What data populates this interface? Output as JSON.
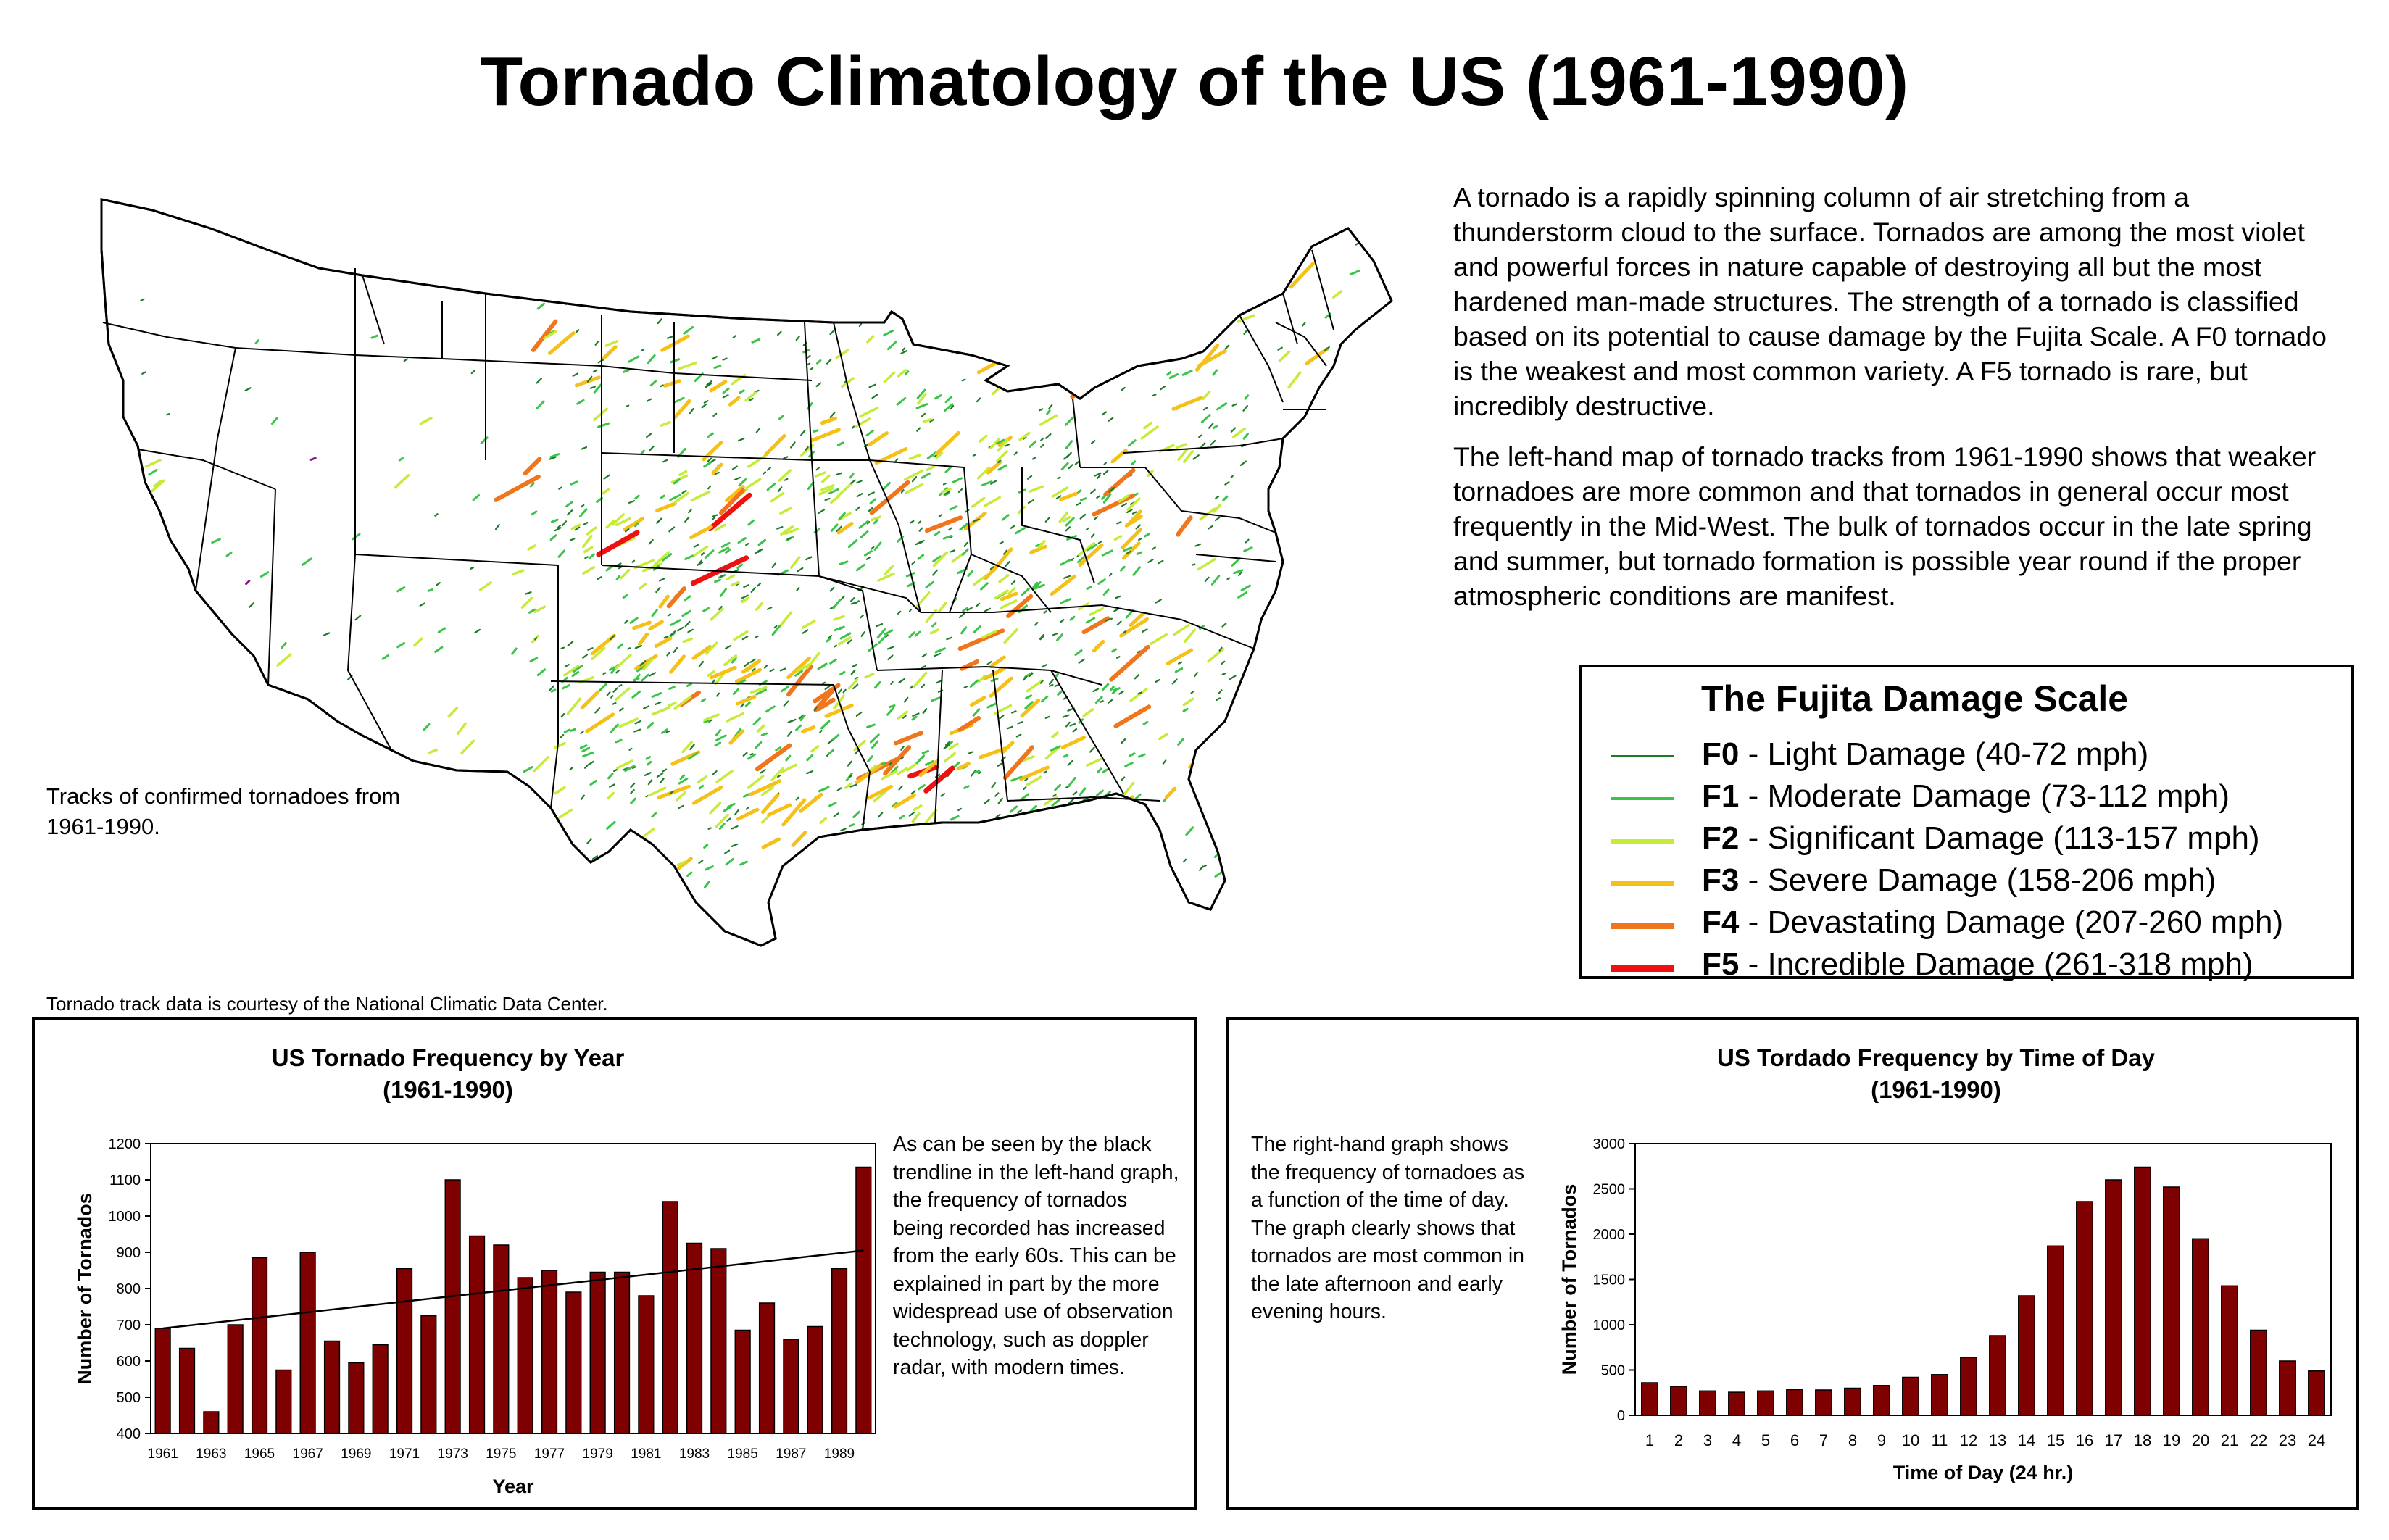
{
  "page": {
    "title": "Tornado Climatology of the US (1961-1990)",
    "intro_p1": "A tornado is a rapidly spinning column of air stretching from a thunderstorm cloud to the surface. Tornados are among the most violet and powerful forces in nature capable of destroying all but the most hardened man-made structures. The strength of a tornado is classified based on its potential to cause damage by the Fujita Scale. A F0 tornado is the weakest and most common variety. A F5 tornado is rare, but incredibly destructive.",
    "intro_p2": "The left-hand map of tornado tracks from 1961-1990 shows that weaker tornadoes are more common and that tornados in general occur most frequently in the Mid-West. The bulk of tornados occur in the late spring and summer, but tornado formation is possible year round if the proper atmospheric conditions are manifest.",
    "map_caption": "Tracks of confirmed tornadoes from 1961-1990.",
    "credit": "Tornado track data is courtesy of the National Climatic Data Center."
  },
  "legend": {
    "title": "The Fujita Damage Scale",
    "items": [
      {
        "code": "F0",
        "desc": " - Light Damage (40-72 mph)",
        "color": "#1f7a2a",
        "width": 3
      },
      {
        "code": "F1",
        "desc": " - Moderate Damage (73-112 mph)",
        "color": "#3cc44a",
        "width": 4
      },
      {
        "code": "F2",
        "desc": " - Significant Damage (113-157 mph)",
        "color": "#c6ec3a",
        "width": 6
      },
      {
        "code": "F3",
        "desc": " - Severe Damage (158-206 mph)",
        "color": "#f5c017",
        "width": 7
      },
      {
        "code": "F4",
        "desc": " - Devastating Damage (207-260 mph)",
        "color": "#f0761d",
        "width": 8
      },
      {
        "code": "F5",
        "desc": " - Incredible Damage (261-318 mph)",
        "color": "#ee1111",
        "width": 9
      }
    ]
  },
  "left_panel": {
    "title_line1": "US Tornado Frequency by Year",
    "title_line2": "(1961-1990)",
    "text": "As can be seen by the black trendline in the left-hand graph, the frequency of tornados being recorded has increased from the early 60s. This can be explained in part by the more widespread use of observation technology, such as doppler radar, with modern times."
  },
  "right_panel": {
    "title_line1": "US Tordado Frequency by Time of Day",
    "title_line2": "(1961-1990)",
    "text": "The right-hand graph shows the frequency of tornadoes as a function of the time of day. The graph clearly shows that tornados are most common in the late afternoon and early evening hours."
  },
  "chart_data": [
    {
      "type": "bar",
      "title": "US Tornado Frequency by Year",
      "subtitle": "(1961-1990)",
      "xlabel": "Year",
      "ylabel": "Number of Tornados",
      "categories": [
        1961,
        1962,
        1963,
        1964,
        1965,
        1966,
        1967,
        1968,
        1969,
        1970,
        1971,
        1972,
        1973,
        1974,
        1975,
        1976,
        1977,
        1978,
        1979,
        1980,
        1981,
        1982,
        1983,
        1984,
        1985,
        1986,
        1987,
        1988,
        1989,
        1990
      ],
      "tick_labels": [
        "1961",
        "1963",
        "1965",
        "1967",
        "1969",
        "1971",
        "1973",
        "1975",
        "1977",
        "1979",
        "1981",
        "1983",
        "1985",
        "1987",
        "1989"
      ],
      "values": [
        690,
        635,
        460,
        700,
        885,
        575,
        900,
        655,
        595,
        645,
        855,
        725,
        1100,
        945,
        920,
        830,
        850,
        790,
        845,
        845,
        780,
        1040,
        925,
        910,
        685,
        760,
        660,
        695,
        855,
        1135
      ],
      "ylim": [
        400,
        1200
      ],
      "yticks": [
        400,
        500,
        600,
        700,
        800,
        900,
        1000,
        1100,
        1200
      ],
      "trendline": {
        "start": 690,
        "end": 905
      },
      "bar_color": "#7f0000"
    },
    {
      "type": "bar",
      "title": "US Tordado Frequency by Time of Day",
      "subtitle": "(1961-1990)",
      "xlabel": "Time of Day (24 hr.)",
      "ylabel": "Number of Tornados",
      "categories": [
        "1",
        "2",
        "3",
        "4",
        "5",
        "6",
        "7",
        "8",
        "9",
        "10",
        "11",
        "12",
        "13",
        "14",
        "15",
        "16",
        "17",
        "18",
        "19",
        "20",
        "21",
        "22",
        "23",
        "24"
      ],
      "values": [
        360,
        320,
        270,
        255,
        270,
        285,
        280,
        300,
        330,
        420,
        450,
        640,
        880,
        1320,
        1870,
        2360,
        2600,
        2740,
        2520,
        1950,
        1430,
        940,
        600,
        490
      ],
      "ylim": [
        0,
        3000
      ],
      "yticks": [
        0,
        500,
        1000,
        1500,
        2000,
        2500,
        3000
      ],
      "bar_color": "#7f0000"
    }
  ]
}
